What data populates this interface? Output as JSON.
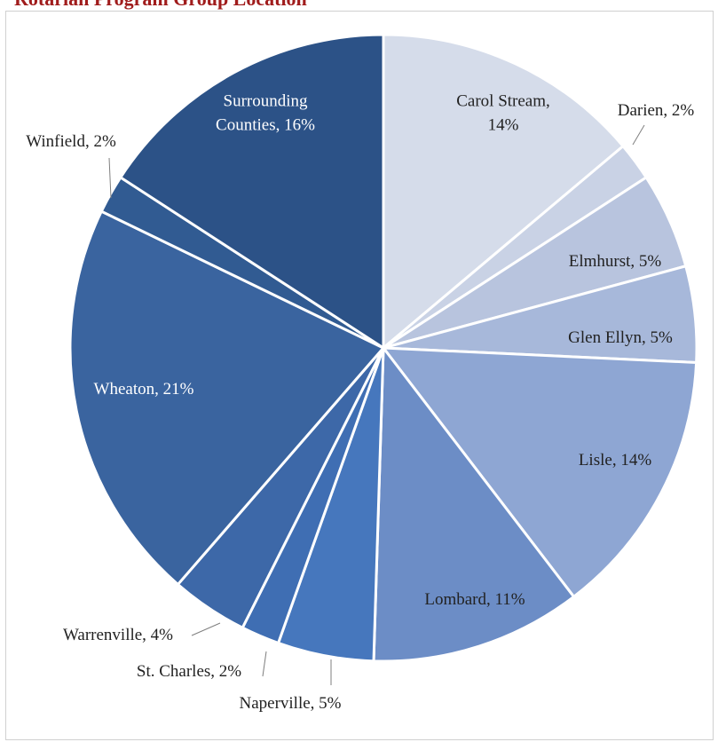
{
  "header": {
    "title": "Rotarian Program Group Location"
  },
  "chart_data": {
    "type": "pie",
    "title": "",
    "slices": [
      {
        "label": "Carol Stream, 14%",
        "category": "Carol Stream",
        "value": 14,
        "color": "#d5dcea",
        "label_color": "#222222",
        "label_lines": [
          "Carol Stream,",
          "14%"
        ]
      },
      {
        "label": "Darien, 2%",
        "category": "Darien",
        "value": 2,
        "color": "#c9d2e5",
        "label_color": "#222222",
        "label_lines": [
          "Darien, 2%"
        ]
      },
      {
        "label": "Elmhurst, 5%",
        "category": "Elmhurst",
        "value": 5,
        "color": "#b8c4de",
        "label_color": "#222222",
        "label_lines": [
          "Elmhurst, 5%"
        ]
      },
      {
        "label": "Glen Ellyn, 5%",
        "category": "Glen Ellyn",
        "value": 5,
        "color": "#a7b8da",
        "label_color": "#222222",
        "label_lines": [
          "Glen Ellyn, 5%"
        ]
      },
      {
        "label": "Lisle, 14%",
        "category": "Lisle",
        "value": 14,
        "color": "#8ea6d3",
        "label_color": "#222222",
        "label_lines": [
          "Lisle, 14%"
        ]
      },
      {
        "label": "Lombard, 11%",
        "category": "Lombard",
        "value": 11,
        "color": "#6c8dc6",
        "label_color": "#222222",
        "label_lines": [
          "Lombard, 11%"
        ]
      },
      {
        "label": "Naperville, 5%",
        "category": "Naperville",
        "value": 5,
        "color": "#4677bd",
        "label_color": "#222222",
        "label_lines": [
          "Naperville, 5%"
        ]
      },
      {
        "label": "St. Charles, 2%",
        "category": "St. Charles",
        "value": 2,
        "color": "#3f6eb3",
        "label_color": "#222222",
        "label_lines": [
          "St. Charles, 2%"
        ]
      },
      {
        "label": "Warrenville, 4%",
        "category": "Warrenville",
        "value": 4,
        "color": "#3d68a8",
        "label_color": "#222222",
        "label_lines": [
          "Warrenville, 4%"
        ]
      },
      {
        "label": "Wheaton, 21%",
        "category": "Wheaton",
        "value": 21,
        "color": "#3a649f",
        "label_color": "#ffffff",
        "label_lines": [
          "Wheaton, 21%"
        ]
      },
      {
        "label": "Winfield, 2%",
        "category": "Winfield",
        "value": 2,
        "color": "#315b92",
        "label_color": "#222222",
        "label_lines": [
          "Winfield, 2%"
        ]
      },
      {
        "label": "Surrounding Counties, 16%",
        "category": "Surrounding Counties",
        "value": 16,
        "color": "#2c5287",
        "label_color": "#ffffff",
        "label_lines": [
          "Surrounding",
          "Counties, 16%"
        ]
      }
    ],
    "legend": "none",
    "slice_border_color": "#ffffff",
    "leader_line_color": "#7f7f7f"
  }
}
